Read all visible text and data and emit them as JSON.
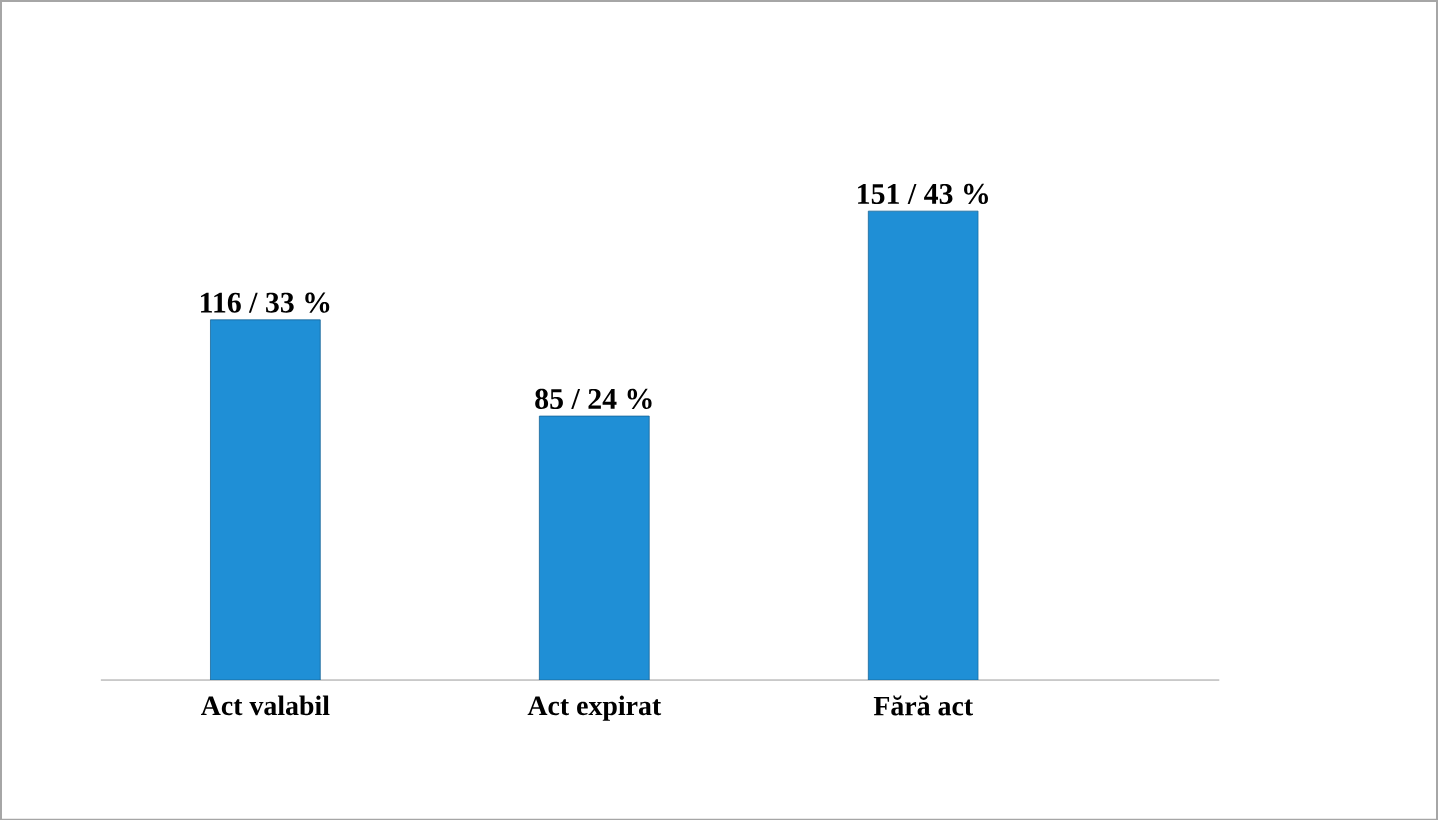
{
  "chart_data": {
    "type": "bar",
    "categories": [
      "Act valabil",
      "Act expirat",
      "Fără act"
    ],
    "values": [
      116,
      85,
      151
    ],
    "color": "#1f8fd6",
    "value_labels": [
      "116 / 33 %",
      "85 / 24 %",
      "151 / 43 %"
    ]
  }
}
